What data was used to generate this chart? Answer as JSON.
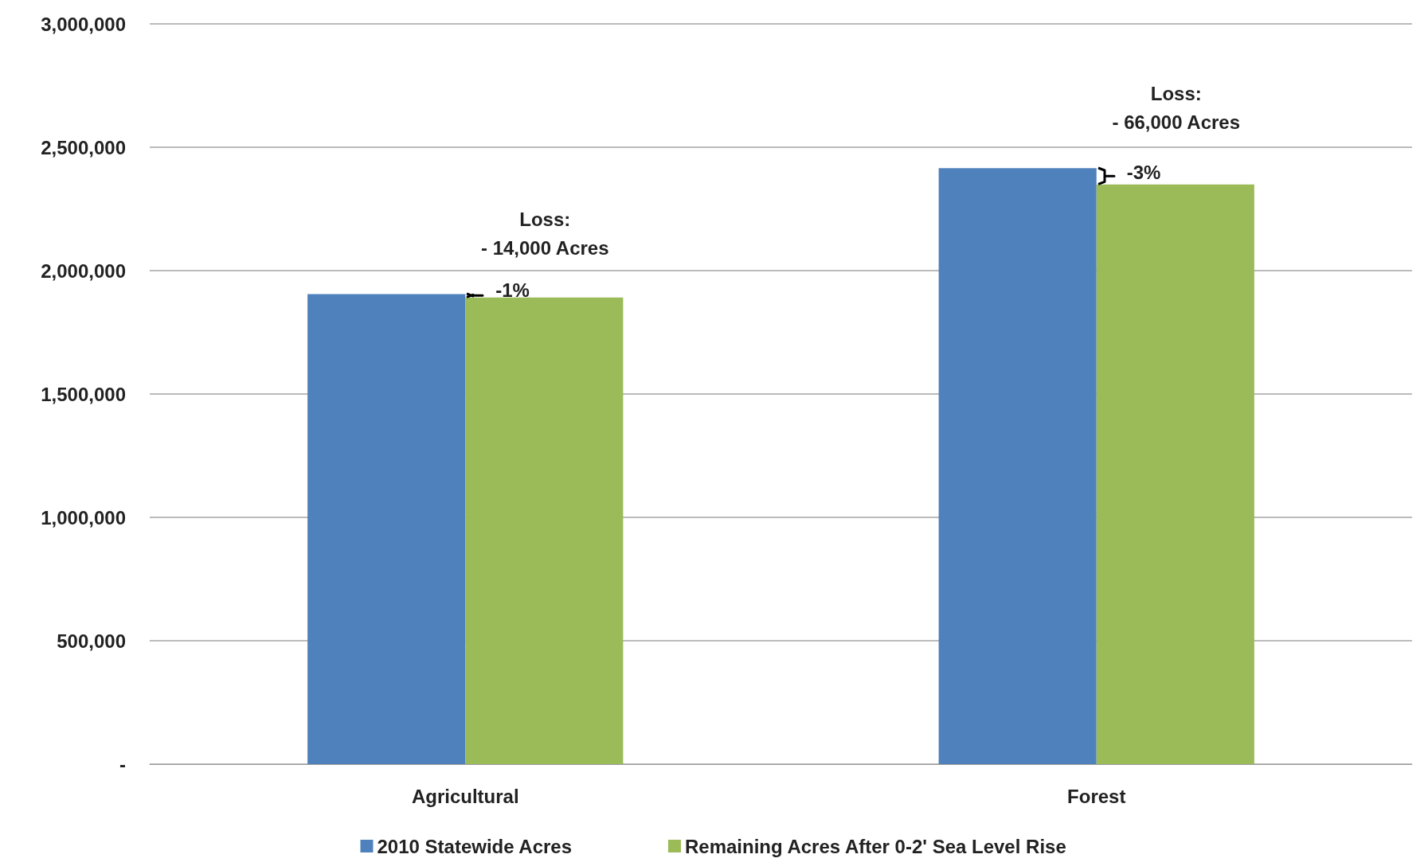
{
  "chart_data": {
    "type": "bar",
    "categories": [
      "Agricultural",
      "Forest"
    ],
    "series": [
      {
        "name": "2010 Statewide Acres",
        "color": "#4f81bd",
        "values": [
          1905000,
          2415000
        ]
      },
      {
        "name": "Remaining Acres After 0-2' Sea Level Rise",
        "color": "#9bbb59",
        "values": [
          1891000,
          2349000
        ]
      }
    ],
    "ylim": [
      0,
      3000000
    ],
    "yticks": [
      {
        "value": 0,
        "label": "-"
      },
      {
        "value": 500000,
        "label": "500,000"
      },
      {
        "value": 1000000,
        "label": "1,000,000"
      },
      {
        "value": 1500000,
        "label": "1,500,000"
      },
      {
        "value": 2000000,
        "label": "2,000,000"
      },
      {
        "value": 2500000,
        "label": "2,500,000"
      },
      {
        "value": 3000000,
        "label": "3,000,000"
      }
    ],
    "annotations": [
      "Loss:\n- 14,000 Acres",
      {
        "text": "-1%",
        "x": "Agricultural",
        "y": 1920000
      },
      "Loss:\n- 66,000 Acres",
      {
        "text": "-3%",
        "x": "Forest",
        "y": 2400000
      }
    ],
    "grid": "y",
    "legend": "bottom"
  }
}
